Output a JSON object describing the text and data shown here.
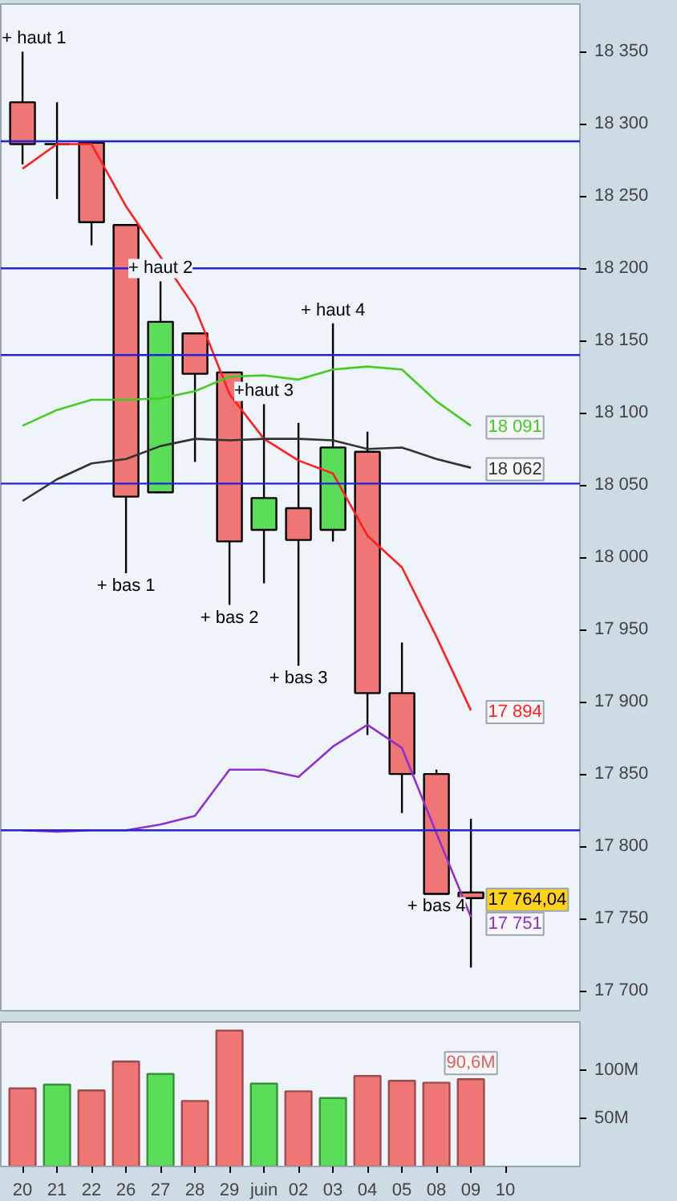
{
  "chart_data": [
    {
      "type": "candlestick",
      "categories": [
        "20",
        "21",
        "22",
        "26",
        "27",
        "28",
        "29",
        "juin",
        "02",
        "03",
        "04",
        "05",
        "08",
        "09",
        "10"
      ],
      "ohlc": [
        [
          18315,
          18350,
          18272,
          18286
        ],
        [
          18286,
          18315,
          18248,
          18286
        ],
        [
          18287,
          18287,
          18216,
          18232
        ],
        [
          18230,
          18230,
          17989,
          18042
        ],
        [
          18045,
          18191,
          18045,
          18163
        ],
        [
          18155,
          18155,
          18066,
          18127
        ],
        [
          18128,
          18128,
          17967,
          18011
        ],
        [
          18019,
          18106,
          17982,
          18041
        ],
        [
          18034,
          18093,
          17925,
          18012
        ],
        [
          18019,
          18162,
          18011,
          18076
        ],
        [
          18073,
          18087,
          17877,
          17906
        ],
        [
          17906,
          17941,
          17823,
          17850
        ],
        [
          17850,
          17853,
          17767,
          17767
        ],
        [
          17768,
          17819,
          17716,
          17764.04
        ],
        null
      ],
      "colors": [
        "#f07575",
        "#000000",
        "#f07575",
        "#f07575",
        "#5ade5a",
        "#f07575",
        "#f07575",
        "#5ade5a",
        "#f07575",
        "#5ade5a",
        "#f07575",
        "#f07575",
        "#f07575",
        "#f07575",
        null
      ],
      "series": [
        {
          "type": "line",
          "color": "#ff2020",
          "values": [
            18269,
            18286,
            18286,
            18243,
            18208,
            18173,
            18113,
            18082,
            18067,
            18058,
            18015,
            17993,
            17945,
            17894,
            null
          ],
          "value_labels": [
            null,
            null,
            null,
            null,
            null,
            null,
            null,
            null,
            null,
            null,
            null,
            null,
            null,
            "17 894",
            null
          ]
        },
        {
          "type": "line",
          "color": "#44cc22",
          "values": [
            18091,
            18102,
            18109,
            18109,
            18110,
            18115,
            18125,
            18126,
            18123,
            18130,
            18132,
            18130,
            18108,
            18091,
            null
          ],
          "value_labels": [
            null,
            null,
            null,
            null,
            null,
            null,
            null,
            null,
            null,
            null,
            null,
            null,
            null,
            "18 091",
            null
          ]
        },
        {
          "type": "line",
          "color": "#333333",
          "values": [
            18039,
            18054,
            18065,
            18068,
            18077,
            18082,
            18081,
            18082,
            18082,
            18081,
            18075,
            18076,
            18068,
            18062,
            null
          ],
          "value_labels": [
            null,
            null,
            null,
            null,
            null,
            null,
            null,
            null,
            null,
            null,
            null,
            null,
            null,
            "18 062",
            null
          ]
        },
        {
          "type": "line",
          "color": "#9030d0",
          "values": [
            17811,
            17810,
            17811,
            17811,
            17815,
            17821,
            17853,
            17853,
            17848,
            17869,
            17884,
            17868,
            17809,
            17751,
            null
          ],
          "value_labels": [
            null,
            null,
            null,
            null,
            null,
            null,
            null,
            null,
            null,
            null,
            null,
            null,
            null,
            "17 751",
            null
          ]
        }
      ],
      "ylim": [
        17685,
        18383
      ],
      "yticks": [
        {
          "value": 17700,
          "label": "17 700"
        },
        {
          "value": 17750,
          "label": "17 750"
        },
        {
          "value": 17800,
          "label": "17 800"
        },
        {
          "value": 17850,
          "label": "17 850"
        },
        {
          "value": 17900,
          "label": "17 900"
        },
        {
          "value": 17950,
          "label": "17 950"
        },
        {
          "value": 18000,
          "label": "18 000"
        },
        {
          "value": 18050,
          "label": "18 050"
        },
        {
          "value": 18100,
          "label": "18 100"
        },
        {
          "value": 18150,
          "label": "18 150"
        },
        {
          "value": 18200,
          "label": "18 200"
        },
        {
          "value": 18250,
          "label": "18 250"
        },
        {
          "value": 18300,
          "label": "18 300"
        },
        {
          "value": 18350,
          "label": "18 350"
        }
      ],
      "ref_lines": [
        {
          "axis": "y",
          "value": 18288,
          "color": "#2222dd"
        },
        {
          "axis": "y",
          "value": 18200,
          "color": "#2222dd"
        },
        {
          "axis": "y",
          "value": 18140,
          "color": "#2222dd"
        },
        {
          "axis": "y",
          "value": 18051,
          "color": "#2222dd"
        },
        {
          "axis": "y",
          "value": 17811,
          "color": "#2222dd"
        }
      ],
      "annotations": [
        {
          "text": "+ haut 1",
          "x": "20",
          "y": 18350
        },
        {
          "text": "+ haut 2",
          "x": "27",
          "y": 18191
        },
        {
          "text": "+haut 3",
          "x": "juin",
          "y": 18106
        },
        {
          "text": "+ haut 4",
          "x": "03",
          "y": 18162
        },
        {
          "text": "+ bas 1",
          "x": "26",
          "y": 17989
        },
        {
          "text": "+ bas 2",
          "x": "29",
          "y": 17967
        },
        {
          "text": "+ bas 3",
          "x": "02",
          "y": 17925
        },
        {
          "text": "+ bas 4",
          "x": "08",
          "y": 17767
        },
        {
          "text": "17 764,04",
          "x": "09",
          "y": 17764.04
        }
      ],
      "tick_labels": "y",
      "grid": false
    },
    {
      "type": "bar",
      "categories": [
        "20",
        "21",
        "22",
        "26",
        "27",
        "28",
        "29",
        "juin",
        "02",
        "03",
        "04",
        "05",
        "08",
        "09",
        "10"
      ],
      "values": [
        81,
        85,
        79,
        109,
        96,
        68,
        141,
        86,
        78,
        71,
        94,
        89,
        87,
        90.6,
        null
      ],
      "colors": [
        "#f07575",
        "#5ade5a",
        "#f07575",
        "#f07575",
        "#5ade5a",
        "#f07575",
        "#f07575",
        "#5ade5a",
        "#f07575",
        "#5ade5a",
        "#f07575",
        "#f07575",
        "#f07575",
        "#f07575",
        null
      ],
      "value_labels": [
        null,
        null,
        null,
        null,
        null,
        null,
        null,
        null,
        null,
        null,
        null,
        null,
        null,
        "90,6M",
        null
      ],
      "ylim": [
        0,
        150
      ],
      "yticks": [
        {
          "value": 50,
          "label": "50M"
        },
        {
          "value": 100,
          "label": "100M"
        }
      ],
      "grid": false
    }
  ]
}
